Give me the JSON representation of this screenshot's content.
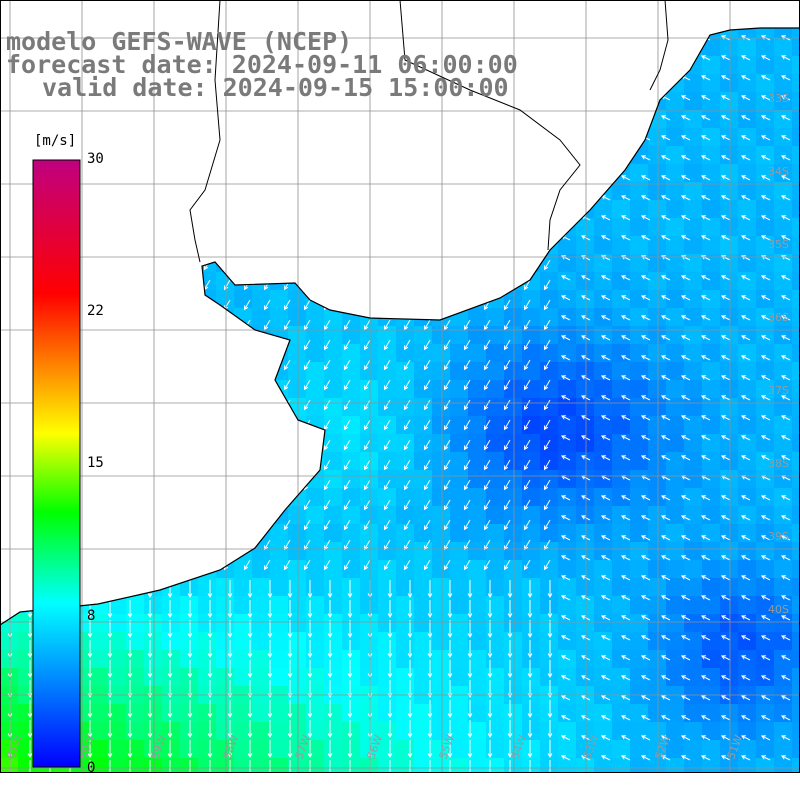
{
  "title": {
    "line1": "modelo GEFS-WAVE (NCEP)",
    "line2": "forecast date: 2024-09-11 06:00:00",
    "line3": "valid date: 2024-09-15 15:00:00"
  },
  "colorbar": {
    "unit": "[m/s]",
    "ticks": [
      "30",
      "22",
      "15",
      "8",
      "0"
    ],
    "colors": [
      "#0000ff",
      "#00ffff",
      "#00ff00",
      "#ffff00",
      "#ff0000",
      "#c00080"
    ]
  },
  "grid": {
    "lat_labels": [
      "33S",
      "34S",
      "35S",
      "36S",
      "37S",
      "38S",
      "39S",
      "40S"
    ],
    "lon_labels": [
      "61W",
      "60W",
      "59W",
      "58W",
      "57W",
      "56W",
      "55W",
      "54W",
      "53W",
      "52W",
      "51W"
    ]
  },
  "colors": {
    "land": "#ffffff",
    "coast": "#000000",
    "grid": "#909090",
    "arrow": "#ffffff"
  }
}
